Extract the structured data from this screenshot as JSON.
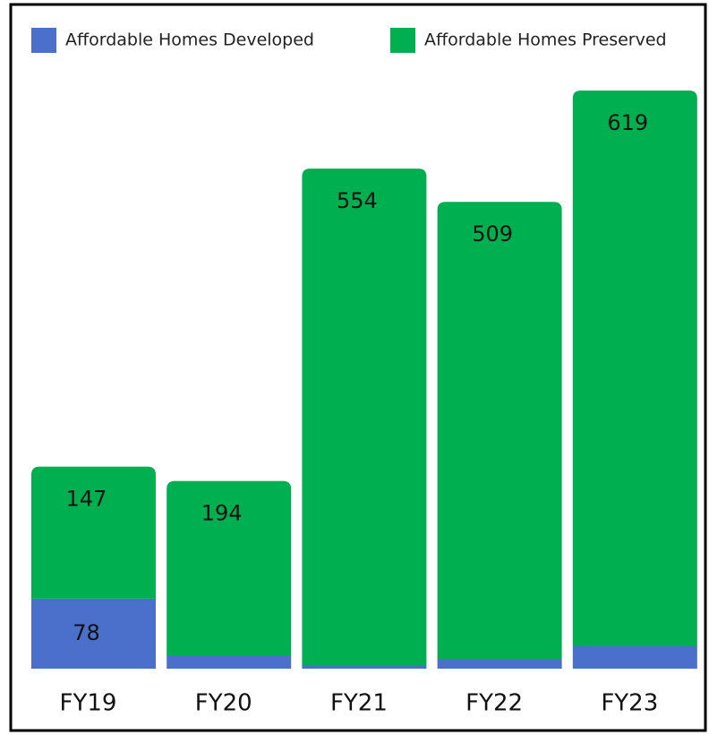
{
  "chart_data": {
    "type": "stacked-bar",
    "categories": [
      "FY19",
      "FY20",
      "FY21",
      "FY22",
      "FY23"
    ],
    "series": [
      {
        "name": "Affordable Homes Developed",
        "color": "#4a70cc",
        "values": [
          78,
          15,
          3,
          11,
          25
        ]
      },
      {
        "name": "Affordable Homes Preserved",
        "color": "#00b050",
        "values": [
          147,
          194,
          554,
          509,
          619
        ]
      }
    ],
    "legend": "top"
  }
}
